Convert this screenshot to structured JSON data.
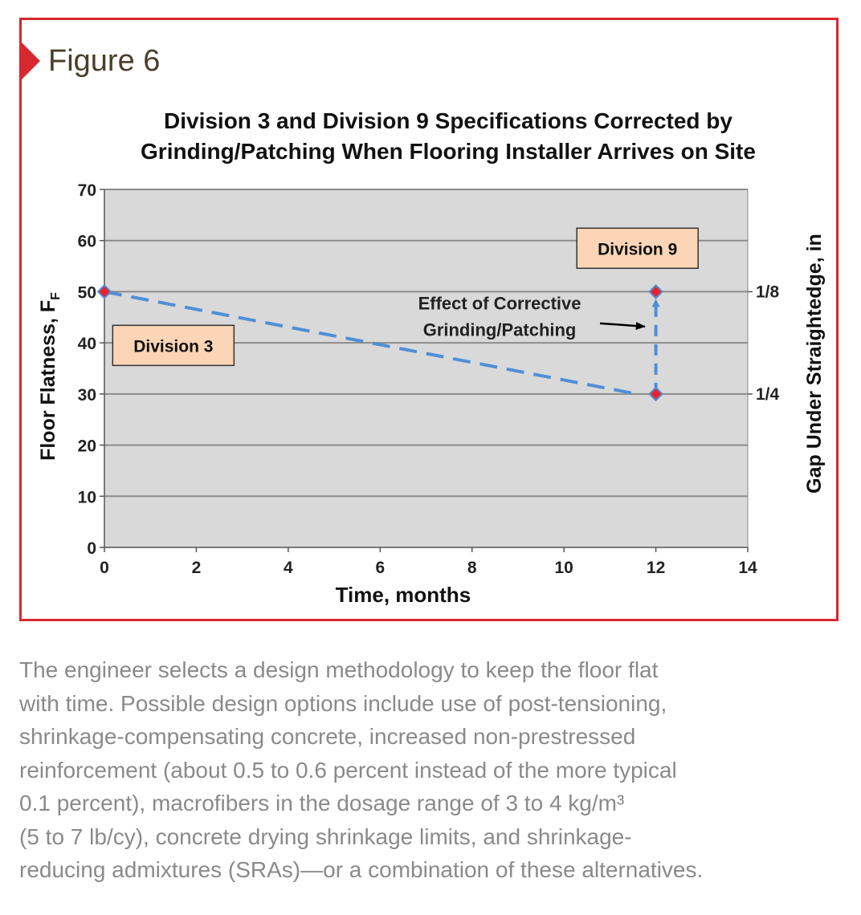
{
  "figure_label": "Figure 6",
  "caption": {
    "lines": [
      "The engineer selects a design methodology to keep the floor flat",
      "with time. Possible design options include use of post-tensioning,",
      "shrinkage-compensating concrete, increased non-prestressed",
      "reinforcement (about 0.5 to 0.6 percent instead of the more typical",
      "0.1 percent), macrofibers in the dosage range of 3 to 4 kg/m³",
      "(5 to 7 lb/cy), concrete drying shrinkage limits, and shrinkage-",
      "reducing admixtures (SRAs)—or a combination of these alternatives."
    ]
  },
  "colors": {
    "frame": "#d7282f",
    "plot_bg": "#d9d9d9",
    "grid": "#8c8c8c",
    "series_line": "#4f8fd6",
    "marker_fill": "#e8222a",
    "marker_edge": "#4f8fd6",
    "box_fill": "#fbd5b5"
  },
  "chart_data": {
    "type": "line",
    "title_lines": [
      "Division 3 and Division 9 Specifications Corrected by",
      "Grinding/Patching When Flooring Installer Arrives on Site"
    ],
    "xlabel": "Time, months",
    "ylabel": "Floor Flatness, F",
    "ylabel_subscript": "F",
    "y2label": "Gap Under Straightedge, in",
    "xlim": [
      0,
      14
    ],
    "ylim": [
      0,
      70
    ],
    "xticks": [
      0,
      2,
      4,
      6,
      8,
      10,
      12,
      14
    ],
    "yticks": [
      0,
      10,
      20,
      30,
      40,
      50,
      60,
      70
    ],
    "y2ticks": [
      {
        "y": 50,
        "label": "1/8"
      },
      {
        "y": 30,
        "label": "1/4"
      }
    ],
    "grid": true,
    "series": [
      {
        "style": "dashed",
        "points": [
          [
            0,
            50
          ],
          [
            12,
            30
          ]
        ]
      },
      {
        "style": "dashed-arrow",
        "points": [
          [
            12,
            30
          ],
          [
            12,
            50
          ]
        ]
      }
    ],
    "markers": [
      [
        0,
        50
      ],
      [
        12,
        30
      ],
      [
        12,
        50
      ]
    ],
    "annotations": [
      {
        "text": "Division 3",
        "boxed": true,
        "x": 1.5,
        "y": 39.5
      },
      {
        "text": "Division 9",
        "boxed": true,
        "x": 11.6,
        "y": 58.5
      },
      {
        "text_lines": [
          "Effect of Corrective",
          "Grinding/Patching"
        ],
        "boxed": false,
        "x": 8.6,
        "y": 46.5,
        "arrow_to": [
          11.9,
          43.5
        ]
      }
    ]
  }
}
